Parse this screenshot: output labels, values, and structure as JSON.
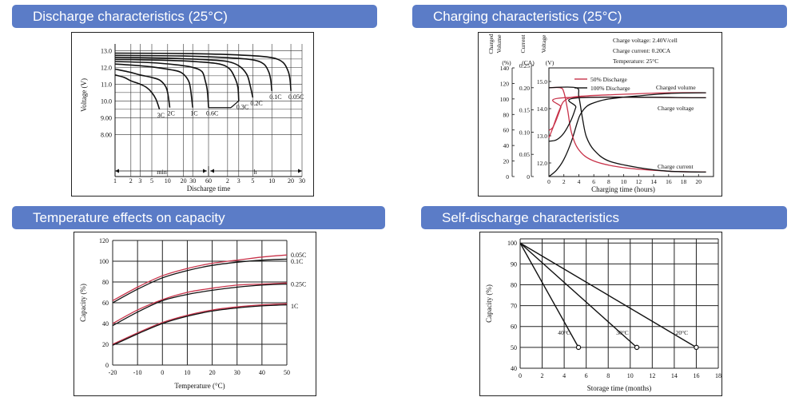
{
  "titles": {
    "discharge": "Discharge characteristics (25°C)",
    "charging": "Charging characteristics (25°C)",
    "temperature": "Temperature effects on capacity",
    "selfdischarge": "Self-discharge characteristics"
  },
  "colors": {
    "header_bg": "#5b7cc7",
    "red_curve": "#c8334a",
    "black_curve": "#111111"
  },
  "chart_data": [
    {
      "id": "discharge",
      "type": "line",
      "title": "",
      "ylabel": "Voltage (V)",
      "xlabel": "Discharge time",
      "x_scale": "log",
      "x_tick_labels": [
        "1",
        "2",
        "3",
        "5",
        "10",
        "20",
        "30",
        "60",
        "2",
        "3",
        "5",
        "10",
        "20",
        "30"
      ],
      "x_groups": [
        "min",
        "h"
      ],
      "y_tick_labels": [
        "13.0",
        "12.0",
        "11.0",
        "10.0",
        "9.00",
        "8.00"
      ],
      "y_ticks": [
        13,
        12,
        11,
        10,
        9,
        8
      ],
      "ylim": [
        7.3,
        13.4
      ],
      "grid": true,
      "series": [
        {
          "name": "3C",
          "end_min": 7,
          "points": [
            [
              1,
              11.55
            ],
            [
              1.5,
              11.4
            ],
            [
              2,
              11.2
            ],
            [
              3,
              11.0
            ],
            [
              4,
              10.8
            ],
            [
              5,
              10.5
            ],
            [
              6,
              10.1
            ],
            [
              7,
              9.5
            ]
          ]
        },
        {
          "name": "2C",
          "end_min": 11,
          "points": [
            [
              1,
              11.9
            ],
            [
              2,
              11.7
            ],
            [
              3,
              11.55
            ],
            [
              5,
              11.4
            ],
            [
              7,
              11.25
            ],
            [
              9,
              10.9
            ],
            [
              10,
              10.5
            ],
            [
              11,
              9.6
            ]
          ]
        },
        {
          "name": "1C",
          "end_min": 30,
          "points": [
            [
              1,
              12.2
            ],
            [
              3,
              12.1
            ],
            [
              6,
              12.0
            ],
            [
              12,
              11.85
            ],
            [
              18,
              11.7
            ],
            [
              24,
              11.3
            ],
            [
              27,
              10.8
            ],
            [
              30,
              9.6
            ]
          ]
        },
        {
          "name": "0.6C",
          "end_min": 60,
          "points": [
            [
              1,
              12.35
            ],
            [
              5,
              12.28
            ],
            [
              15,
              12.15
            ],
            [
              30,
              12.0
            ],
            [
              45,
              11.75
            ],
            [
              52,
              11.2
            ],
            [
              57,
              10.6
            ],
            [
              60,
              9.6
            ]
          ]
        },
        {
          "name": "0.2C",
          "end_min": 300,
          "points": [
            [
              1,
              12.6
            ],
            [
              10,
              12.55
            ],
            [
              60,
              12.45
            ],
            [
              120,
              12.35
            ],
            [
              180,
              12.1
            ],
            [
              240,
              11.6
            ],
            [
              270,
              11.0
            ],
            [
              300,
              10.2
            ]
          ]
        },
        {
          "name": "0.3C",
          "end_min": 180,
          "points": [
            [
              1,
              12.48
            ],
            [
              10,
              12.42
            ],
            [
              40,
              12.33
            ],
            [
              90,
              12.2
            ],
            [
              130,
              11.9
            ],
            [
              160,
              11.3
            ],
            [
              175,
              10.8
            ],
            [
              180,
              10.0
            ]
          ]
        },
        {
          "name": "0.1C",
          "end_min": 600,
          "points": [
            [
              1,
              12.72
            ],
            [
              20,
              12.68
            ],
            [
              120,
              12.58
            ],
            [
              300,
              12.45
            ],
            [
              450,
              12.2
            ],
            [
              540,
              11.7
            ],
            [
              580,
              11.2
            ],
            [
              600,
              10.6
            ]
          ]
        },
        {
          "name": "0.05C",
          "end_min": 1200,
          "points": [
            [
              1,
              12.85
            ],
            [
              30,
              12.82
            ],
            [
              240,
              12.72
            ],
            [
              600,
              12.58
            ],
            [
              900,
              12.3
            ],
            [
              1080,
              11.8
            ],
            [
              1160,
              11.3
            ],
            [
              1200,
              10.6
            ]
          ]
        }
      ],
      "cutoff_line": {
        "y": 9.6,
        "from_min": 60,
        "to_min": 180
      }
    },
    {
      "id": "charging",
      "type": "line",
      "title": "",
      "xlabel": "Charging time (hours)",
      "x_ticks": [
        0,
        2,
        4,
        6,
        8,
        10,
        12,
        14,
        16,
        18,
        20
      ],
      "xlim": [
        0,
        22
      ],
      "axis_headers": [
        "Charged volume (%)",
        "Current (CA)",
        "Voltage (V)"
      ],
      "left_axis_ticks": [
        0,
        20,
        40,
        60,
        80,
        100,
        120,
        140
      ],
      "current_ticks": [
        "0",
        "0.05",
        "0.10",
        "0.15",
        "0.20",
        "0.25"
      ],
      "voltage_ticks": [
        "15.0",
        "14.0",
        "13.0",
        "12.0"
      ],
      "info": [
        "Charge voltage: 2.40V/cell",
        "Charge current: 0.20CA",
        "Temperature: 25°C"
      ],
      "legend": [
        {
          "label": "50% Discharge",
          "color": "#c8334a"
        },
        {
          "label": "100% Discharge",
          "color": "#111111"
        }
      ],
      "annotations": [
        "Charged volume",
        "Charge voltage",
        "Charge current"
      ],
      "series": [
        {
          "name": "50% Discharge",
          "kind": "charged_volume",
          "points": [
            [
              0,
              50
            ],
            [
              0.5,
              62
            ],
            [
              1,
              76
            ],
            [
              1.5,
              88
            ],
            [
              2,
              97
            ],
            [
              3,
              102
            ],
            [
              5,
              104
            ],
            [
              10,
              106
            ],
            [
              16,
              108
            ],
            [
              21,
              108
            ]
          ]
        },
        {
          "name": "100% Discharge",
          "kind": "charged_volume",
          "points": [
            [
              0,
              0
            ],
            [
              1,
              8
            ],
            [
              2,
              22
            ],
            [
              3,
              45
            ],
            [
              3.8,
              70
            ],
            [
              4.2,
              80
            ],
            [
              5,
              90
            ],
            [
              6,
              95
            ],
            [
              8,
              100
            ],
            [
              12,
              104
            ],
            [
              16,
              107
            ],
            [
              21,
              108
            ]
          ]
        },
        {
          "name": "50% Discharge",
          "kind": "current",
          "points": [
            [
              0,
              0.2
            ],
            [
              1.5,
              0.2
            ],
            [
              2,
              0.19
            ],
            [
              2.5,
              0.15
            ],
            [
              3,
              0.1
            ],
            [
              4,
              0.06
            ],
            [
              6,
              0.035
            ],
            [
              10,
              0.02
            ],
            [
              16,
              0.012
            ],
            [
              21,
              0.01
            ]
          ]
        },
        {
          "name": "100% Discharge",
          "kind": "current",
          "points": [
            [
              0,
              0.2
            ],
            [
              3.6,
              0.2
            ],
            [
              4,
              0.18
            ],
            [
              4.5,
              0.13
            ],
            [
              5,
              0.09
            ],
            [
              6,
              0.06
            ],
            [
              8,
              0.035
            ],
            [
              12,
              0.02
            ],
            [
              16,
              0.012
            ],
            [
              21,
              0.01
            ]
          ]
        },
        {
          "name": "50% Discharge",
          "kind": "voltage",
          "points": [
            [
              0,
              13.2
            ],
            [
              0.5,
              13.3
            ],
            [
              1,
              13.6
            ],
            [
              1.6,
              14.05
            ],
            [
              2,
              14.4
            ],
            [
              21,
              14.4
            ]
          ]
        },
        {
          "name": "100% Discharge",
          "kind": "voltage",
          "points": [
            [
              0,
              12.8
            ],
            [
              1,
              12.85
            ],
            [
              2,
              13.1
            ],
            [
              3,
              13.6
            ],
            [
              3.6,
              14.05
            ],
            [
              4,
              14.4
            ],
            [
              21,
              14.4
            ]
          ]
        }
      ]
    },
    {
      "id": "temperature",
      "type": "line",
      "title": "",
      "xlabel": "Temperature (°C)",
      "ylabel": "Capacity (%)",
      "x_ticks": [
        -20,
        -10,
        0,
        10,
        20,
        30,
        40,
        50
      ],
      "y_ticks": [
        0,
        20,
        40,
        60,
        80,
        100,
        120
      ],
      "xlim": [
        -20,
        50
      ],
      "ylim": [
        0,
        120
      ],
      "grid": true,
      "series": [
        {
          "name": "0.05C",
          "color": "#c8334a",
          "points": [
            [
              -20,
              62
            ],
            [
              -10,
              75
            ],
            [
              0,
              86
            ],
            [
              10,
              93
            ],
            [
              20,
              98
            ],
            [
              30,
              101
            ],
            [
              40,
              104
            ],
            [
              50,
              106
            ]
          ]
        },
        {
          "name": "0.1C",
          "color": "#111111",
          "points": [
            [
              -20,
              60
            ],
            [
              -10,
              73
            ],
            [
              0,
              84
            ],
            [
              10,
              91
            ],
            [
              20,
              96
            ],
            [
              30,
              99
            ],
            [
              40,
              101
            ],
            [
              50,
              102
            ]
          ]
        },
        {
          "name": "0.25C",
          "color": "#c8334a",
          "points": [
            [
              -20,
              40
            ],
            [
              -10,
              53
            ],
            [
              0,
              63
            ],
            [
              10,
              70
            ],
            [
              20,
              74
            ],
            [
              30,
              77
            ],
            [
              40,
              78
            ],
            [
              50,
              79
            ]
          ]
        },
        {
          "name": "0.25C",
          "color": "#111111",
          "points": [
            [
              -20,
              38
            ],
            [
              -10,
              51
            ],
            [
              0,
              62
            ],
            [
              10,
              68
            ],
            [
              20,
              72
            ],
            [
              30,
              75
            ],
            [
              40,
              77
            ],
            [
              50,
              78
            ]
          ]
        },
        {
          "name": "1C",
          "color": "#c8334a",
          "points": [
            [
              -20,
              20
            ],
            [
              -10,
              31
            ],
            [
              0,
              41
            ],
            [
              10,
              48
            ],
            [
              20,
              53
            ],
            [
              30,
              56
            ],
            [
              40,
              58
            ],
            [
              50,
              59
            ]
          ]
        },
        {
          "name": "1C",
          "color": "#111111",
          "points": [
            [
              -20,
              19
            ],
            [
              -10,
              30
            ],
            [
              0,
              40
            ],
            [
              10,
              47
            ],
            [
              20,
              52
            ],
            [
              30,
              55
            ],
            [
              40,
              57
            ],
            [
              50,
              58
            ]
          ]
        }
      ]
    },
    {
      "id": "selfdischarge",
      "type": "line",
      "title": "",
      "xlabel": "Storage time (months)",
      "ylabel": "Capacity (%)",
      "x_ticks": [
        0,
        2,
        4,
        6,
        8,
        10,
        12,
        14,
        16,
        18
      ],
      "y_ticks": [
        40,
        50,
        60,
        70,
        80,
        90,
        100
      ],
      "xlim": [
        0,
        18
      ],
      "ylim": [
        40,
        102
      ],
      "grid": true,
      "series": [
        {
          "name": "40°C",
          "points": [
            [
              0,
              100
            ],
            [
              5.3,
              50
            ]
          ]
        },
        {
          "name": "30°C",
          "points": [
            [
              0,
              100
            ],
            [
              10.6,
              50
            ]
          ]
        },
        {
          "name": "20°C",
          "points": [
            [
              0,
              100
            ],
            [
              16,
              50
            ]
          ]
        }
      ]
    }
  ]
}
